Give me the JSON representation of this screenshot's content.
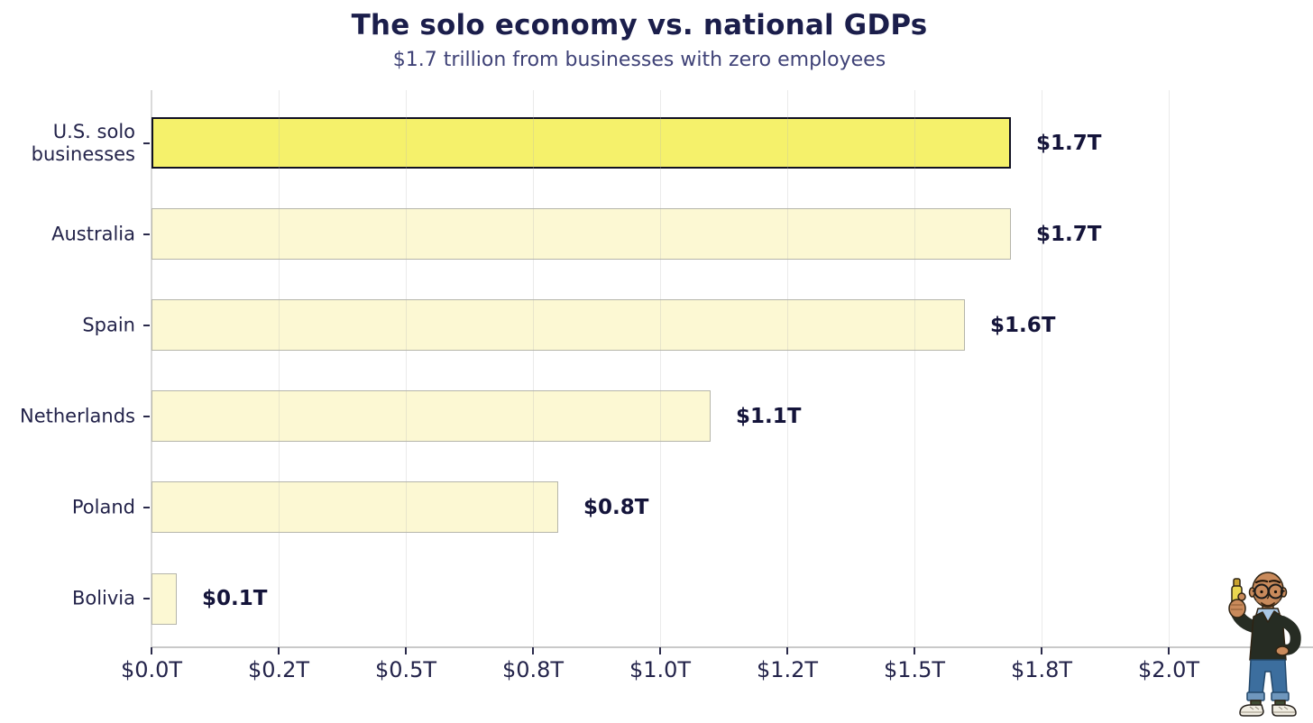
{
  "title": "The solo economy vs. national GDPs",
  "subtitle": "$1.7 trillion from businesses with zero employees",
  "chart_data": {
    "type": "bar",
    "orientation": "horizontal",
    "title": "The solo economy vs. national GDPs",
    "subtitle": "$1.7 trillion from businesses with zero employees",
    "categories": [
      "U.S. solo\nbusinesses",
      "Australia",
      "Spain",
      "Netherlands",
      "Poland",
      "Bolivia"
    ],
    "values": [
      1.69,
      1.69,
      1.6,
      1.1,
      0.8,
      0.05
    ],
    "labels": [
      "$1.7T",
      "$1.7T",
      "$1.6T",
      "$1.1T",
      "$0.8T",
      "$0.1T"
    ],
    "highlight_index": 0,
    "x_ticks": [
      {
        "label": "$0.0T",
        "value": 0
      },
      {
        "label": "$0.2T",
        "value": 0.25
      },
      {
        "label": "$0.5T",
        "value": 0.5
      },
      {
        "label": "$0.8T",
        "value": 0.75
      },
      {
        "label": "$1.0T",
        "value": 1.0
      },
      {
        "label": "$1.2T",
        "value": 1.25
      },
      {
        "label": "$1.5T",
        "value": 1.5
      },
      {
        "label": "$1.8T",
        "value": 1.75
      },
      {
        "label": "$2.0T",
        "value": 2.0
      }
    ],
    "xlim": [
      0,
      2.15
    ],
    "grid": "vertical-light",
    "legend": "none",
    "colors": {
      "highlight_bar_fill": "#f5f16b",
      "highlight_bar_border": "#101022",
      "bar_fill": "#fcf8d3",
      "bar_border": "#b5b5aa",
      "title_text": "#1b1e4b",
      "subtitle_text": "#3f4277",
      "axis_text": "#23234a",
      "value_label_text": "#14143a"
    }
  },
  "mascot": {
    "description": "cartoon bald man with glasses giving thumbs-up while holding a yellow highlighter"
  }
}
